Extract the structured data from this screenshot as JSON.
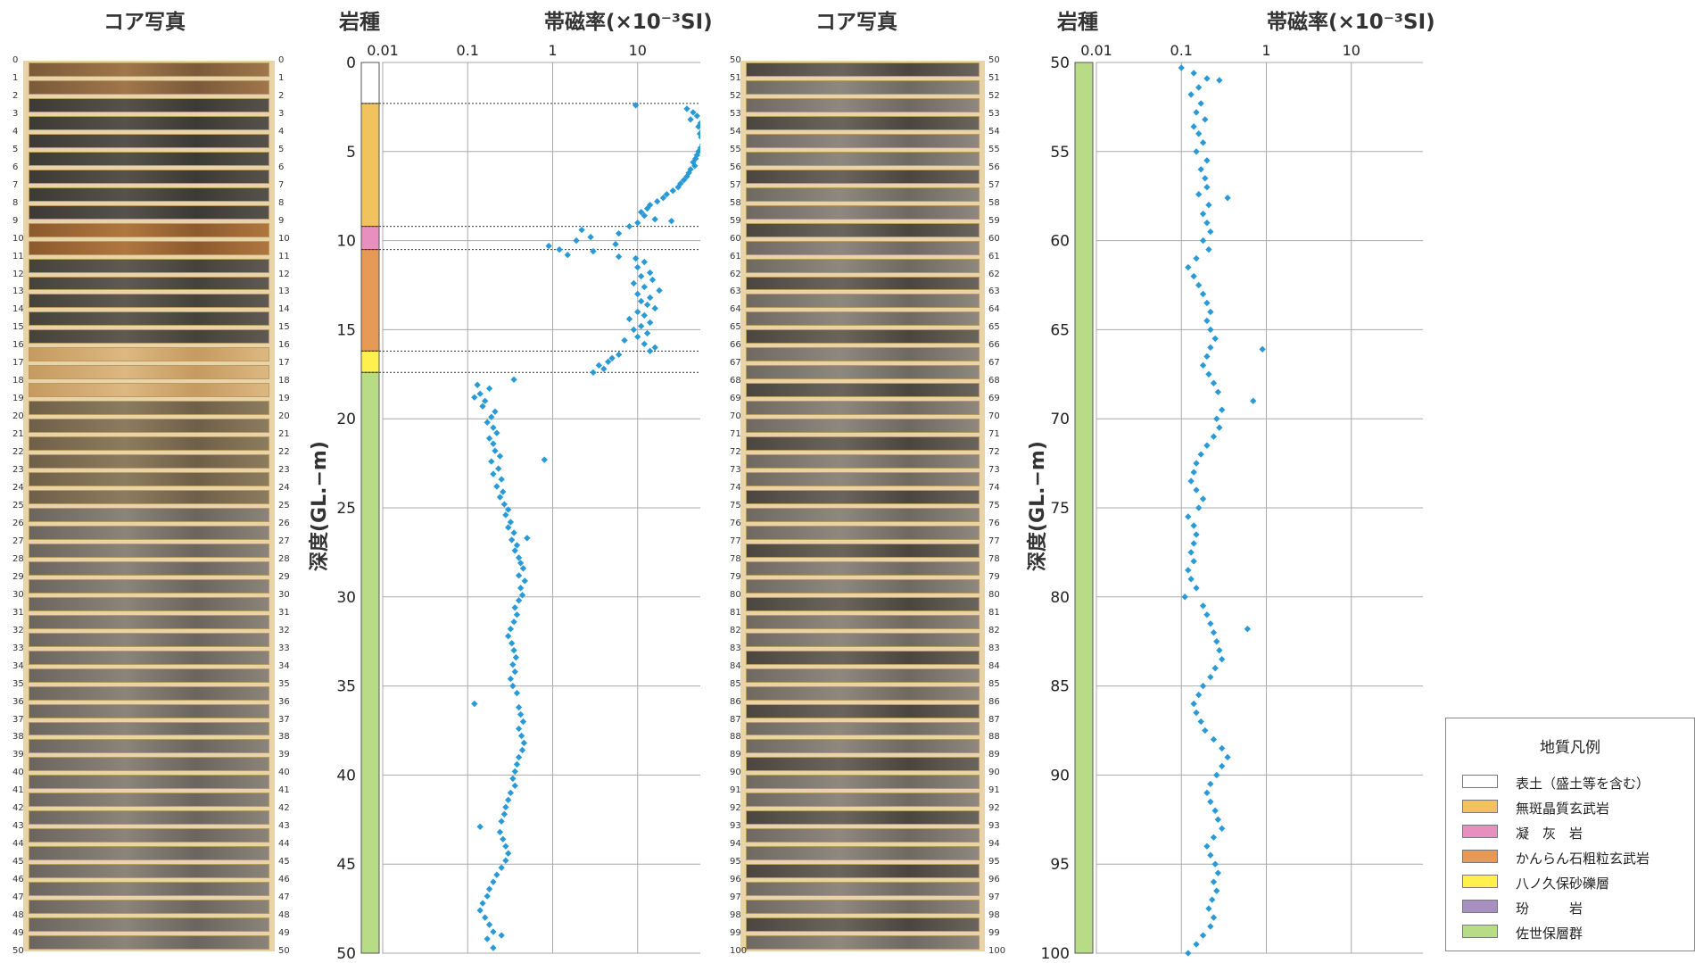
{
  "headers": {
    "core_photo_left": "コア写真",
    "core_photo_right": "コア写真",
    "rock_type_left": "岩種",
    "rock_type_right": "岩種",
    "susceptibility_left": "帯磁率(×10⁻³SI)",
    "susceptibility_right": "帯磁率(×10⁻³SI)"
  },
  "depth_axis_label": "深度(GL.−m)",
  "legend": {
    "title": "地質凡例",
    "items": [
      {
        "label": "表土（盛土等を含む）",
        "color": "#ffffff"
      },
      {
        "label": "無斑晶質玄武岩",
        "color": "#f1c35e"
      },
      {
        "label": "凝　灰　岩",
        "color": "#e98fbf"
      },
      {
        "label": "かんらん石粗粒玄武岩",
        "color": "#e69a56"
      },
      {
        "label": "八ノ久保砂礫層",
        "color": "#fff04d"
      },
      {
        "label": "玢　　　岩",
        "color": "#a78fc0"
      },
      {
        "label": "佐世保層群",
        "color": "#b8dc86"
      }
    ]
  },
  "core_marks_left": [
    "0",
    "1",
    "2",
    "3",
    "4",
    "5",
    "6",
    "7",
    "8",
    "9",
    "10",
    "11",
    "12",
    "13",
    "14",
    "15",
    "16",
    "17",
    "18",
    "19",
    "20",
    "21",
    "22",
    "23",
    "24",
    "25",
    "26",
    "27",
    "28",
    "29",
    "30",
    "31",
    "32",
    "33",
    "34",
    "35",
    "36",
    "37",
    "38",
    "39",
    "40",
    "41",
    "42",
    "43",
    "44",
    "45",
    "46",
    "47",
    "48",
    "49",
    "50"
  ],
  "core_marks_right": [
    "50",
    "51",
    "52",
    "53",
    "54",
    "55",
    "56",
    "57",
    "58",
    "59",
    "60",
    "61",
    "62",
    "63",
    "64",
    "65",
    "66",
    "67",
    "68",
    "69",
    "70",
    "71",
    "72",
    "73",
    "74",
    "75",
    "76",
    "77",
    "78",
    "79",
    "80",
    "81",
    "82",
    "83",
    "84",
    "85",
    "86",
    "87",
    "88",
    "89",
    "90",
    "91",
    "92",
    "93",
    "94",
    "95",
    "96",
    "97",
    "98",
    "99",
    "100"
  ],
  "chart_data": [
    {
      "type": "scatter",
      "xlabel": "帯磁率(×10⁻³SI)",
      "ylabel": "深度(GL.−m)",
      "x_scale": "log",
      "xlim": [
        0.01,
        100
      ],
      "xticks": [
        "0.01",
        "0.1",
        "1",
        "10",
        "100"
      ],
      "ylim": [
        0,
        50
      ],
      "yticks": [
        "0",
        "5",
        "10",
        "15",
        "20",
        "25",
        "30",
        "35",
        "40",
        "45",
        "50"
      ],
      "y_inverted": true,
      "grid": true,
      "marker_color": "#2a9ad6",
      "rock_strata": [
        {
          "from": 0,
          "to": 2.3,
          "unit": "表土（盛土等を含む）",
          "color": "#ffffff"
        },
        {
          "from": 2.3,
          "to": 9.2,
          "unit": "無斑晶質玄武岩",
          "color": "#f1c35e"
        },
        {
          "from": 9.2,
          "to": 10.5,
          "unit": "凝　灰　岩",
          "color": "#e98fbf"
        },
        {
          "from": 10.5,
          "to": 16.2,
          "unit": "かんらん石粗粒玄武岩",
          "color": "#e69a56"
        },
        {
          "from": 16.2,
          "to": 17.4,
          "unit": "八ノ久保砂礫層",
          "color": "#fff04d"
        },
        {
          "from": 17.4,
          "to": 50,
          "unit": "佐世保層群",
          "color": "#b8dc86"
        }
      ],
      "boundaries": [
        2.3,
        9.2,
        10.5,
        16.2,
        17.4
      ],
      "points": [
        [
          9.5,
          2.4
        ],
        [
          38,
          2.6
        ],
        [
          45,
          2.8
        ],
        [
          50,
          3.0
        ],
        [
          42,
          3.2
        ],
        [
          55,
          3.4
        ],
        [
          52,
          3.6
        ],
        [
          58,
          3.8
        ],
        [
          54,
          4.0
        ],
        [
          56,
          4.2
        ],
        [
          60,
          4.4
        ],
        [
          58,
          4.6
        ],
        [
          55,
          4.8
        ],
        [
          52,
          5.0
        ],
        [
          50,
          5.2
        ],
        [
          48,
          5.4
        ],
        [
          45,
          5.6
        ],
        [
          47,
          5.8
        ],
        [
          42,
          6.0
        ],
        [
          40,
          6.2
        ],
        [
          38,
          6.4
        ],
        [
          35,
          6.6
        ],
        [
          32,
          6.8
        ],
        [
          30,
          7.0
        ],
        [
          26,
          7.2
        ],
        [
          22,
          7.4
        ],
        [
          20,
          7.6
        ],
        [
          17,
          7.8
        ],
        [
          14,
          8.0
        ],
        [
          13,
          8.2
        ],
        [
          11,
          8.4
        ],
        [
          12,
          8.6
        ],
        [
          16,
          8.8
        ],
        [
          25,
          8.9
        ],
        [
          10,
          9.0
        ],
        [
          8,
          9.2
        ],
        [
          6,
          9.6
        ],
        [
          2.2,
          9.4
        ],
        [
          2.8,
          9.8
        ],
        [
          1.9,
          10.0
        ],
        [
          0.9,
          10.3
        ],
        [
          1.2,
          10.5
        ],
        [
          1.5,
          10.8
        ],
        [
          3.0,
          10.6
        ],
        [
          5.5,
          10.2
        ],
        [
          6,
          10.9
        ],
        [
          9.5,
          11.0
        ],
        [
          12,
          11.2
        ],
        [
          10,
          11.5
        ],
        [
          14,
          11.8
        ],
        [
          11,
          12.0
        ],
        [
          15,
          12.2
        ],
        [
          9,
          12.4
        ],
        [
          12,
          12.6
        ],
        [
          18,
          12.8
        ],
        [
          10,
          13.0
        ],
        [
          14,
          13.2
        ],
        [
          11,
          13.4
        ],
        [
          13,
          13.6
        ],
        [
          16,
          13.8
        ],
        [
          10,
          14.0
        ],
        [
          12,
          14.2
        ],
        [
          8,
          14.4
        ],
        [
          14,
          14.6
        ],
        [
          11,
          14.8
        ],
        [
          9,
          15.0
        ],
        [
          13,
          15.2
        ],
        [
          10,
          15.4
        ],
        [
          7,
          15.6
        ],
        [
          12,
          15.8
        ],
        [
          16,
          16.0
        ],
        [
          14,
          16.2
        ],
        [
          6,
          16.4
        ],
        [
          5,
          16.6
        ],
        [
          4.5,
          16.8
        ],
        [
          3.5,
          17.0
        ],
        [
          4,
          17.2
        ],
        [
          3,
          17.4
        ],
        [
          0.35,
          17.8
        ],
        [
          0.13,
          18.1
        ],
        [
          0.18,
          18.3
        ],
        [
          0.14,
          18.6
        ],
        [
          0.12,
          18.8
        ],
        [
          0.16,
          19.0
        ],
        [
          0.15,
          19.3
        ],
        [
          0.21,
          19.6
        ],
        [
          0.19,
          19.9
        ],
        [
          0.17,
          20.2
        ],
        [
          0.2,
          20.5
        ],
        [
          0.22,
          20.8
        ],
        [
          0.18,
          21.1
        ],
        [
          0.2,
          21.4
        ],
        [
          0.21,
          21.8
        ],
        [
          0.24,
          22.1
        ],
        [
          0.19,
          22.4
        ],
        [
          0.8,
          22.3
        ],
        [
          0.23,
          22.8
        ],
        [
          0.2,
          23.1
        ],
        [
          0.25,
          23.4
        ],
        [
          0.22,
          23.8
        ],
        [
          0.26,
          24.1
        ],
        [
          0.24,
          24.4
        ],
        [
          0.27,
          24.8
        ],
        [
          0.3,
          25.1
        ],
        [
          0.28,
          25.4
        ],
        [
          0.32,
          25.8
        ],
        [
          0.3,
          26.1
        ],
        [
          0.35,
          26.4
        ],
        [
          0.33,
          26.8
        ],
        [
          0.5,
          26.7
        ],
        [
          0.38,
          27.1
        ],
        [
          0.36,
          27.4
        ],
        [
          0.4,
          27.8
        ],
        [
          0.42,
          28.1
        ],
        [
          0.45,
          28.4
        ],
        [
          0.4,
          28.8
        ],
        [
          0.47,
          29.1
        ],
        [
          0.42,
          29.5
        ],
        [
          0.44,
          29.9
        ],
        [
          0.4,
          30.2
        ],
        [
          0.36,
          30.6
        ],
        [
          0.38,
          31.0
        ],
        [
          0.35,
          31.4
        ],
        [
          0.32,
          31.8
        ],
        [
          0.3,
          32.2
        ],
        [
          0.33,
          32.6
        ],
        [
          0.35,
          33.0
        ],
        [
          0.37,
          33.4
        ],
        [
          0.34,
          33.8
        ],
        [
          0.36,
          34.2
        ],
        [
          0.32,
          34.6
        ],
        [
          0.34,
          35.0
        ],
        [
          0.38,
          35.4
        ],
        [
          0.12,
          36.0
        ],
        [
          0.4,
          36.2
        ],
        [
          0.42,
          36.6
        ],
        [
          0.45,
          37.0
        ],
        [
          0.4,
          37.4
        ],
        [
          0.43,
          37.8
        ],
        [
          0.46,
          38.2
        ],
        [
          0.44,
          38.6
        ],
        [
          0.4,
          39.0
        ],
        [
          0.38,
          39.4
        ],
        [
          0.36,
          39.8
        ],
        [
          0.34,
          40.2
        ],
        [
          0.36,
          40.6
        ],
        [
          0.32,
          41.0
        ],
        [
          0.3,
          41.4
        ],
        [
          0.28,
          41.8
        ],
        [
          0.27,
          42.2
        ],
        [
          0.25,
          42.6
        ],
        [
          0.14,
          42.9
        ],
        [
          0.24,
          43.2
        ],
        [
          0.26,
          43.6
        ],
        [
          0.28,
          44.0
        ],
        [
          0.3,
          44.4
        ],
        [
          0.28,
          44.8
        ],
        [
          0.25,
          45.2
        ],
        [
          0.22,
          45.6
        ],
        [
          0.2,
          46.0
        ],
        [
          0.18,
          46.4
        ],
        [
          0.17,
          46.8
        ],
        [
          0.15,
          47.2
        ],
        [
          0.14,
          47.6
        ],
        [
          0.16,
          48.0
        ],
        [
          0.18,
          48.4
        ],
        [
          0.2,
          48.8
        ],
        [
          0.17,
          49.2
        ],
        [
          0.25,
          49.0
        ],
        [
          0.2,
          49.7
        ]
      ]
    },
    {
      "type": "scatter",
      "xlabel": "帯磁率(×10⁻³SI)",
      "ylabel": "深度(GL.−m)",
      "x_scale": "log",
      "xlim": [
        0.01,
        100
      ],
      "xticks": [
        "0.01",
        "0.1",
        "1",
        "10",
        "100"
      ],
      "ylim": [
        50,
        100
      ],
      "yticks": [
        "50",
        "55",
        "60",
        "65",
        "70",
        "75",
        "80",
        "85",
        "90",
        "95",
        "100"
      ],
      "y_inverted": true,
      "grid": true,
      "marker_color": "#2a9ad6",
      "rock_strata": [
        {
          "from": 50,
          "to": 100,
          "unit": "佐世保層群",
          "color": "#b8dc86"
        }
      ],
      "boundaries": [],
      "points": [
        [
          0.1,
          50.3
        ],
        [
          0.14,
          50.6
        ],
        [
          0.2,
          50.9
        ],
        [
          0.28,
          51.0
        ],
        [
          0.16,
          51.4
        ],
        [
          0.13,
          51.8
        ],
        [
          0.17,
          52.3
        ],
        [
          0.15,
          52.8
        ],
        [
          0.19,
          53.2
        ],
        [
          0.14,
          53.6
        ],
        [
          0.16,
          54.0
        ],
        [
          0.18,
          54.5
        ],
        [
          0.15,
          55.0
        ],
        [
          0.2,
          55.5
        ],
        [
          0.17,
          56.0
        ],
        [
          0.19,
          56.5
        ],
        [
          0.2,
          57.0
        ],
        [
          0.16,
          57.4
        ],
        [
          0.35,
          57.6
        ],
        [
          0.21,
          58.0
        ],
        [
          0.18,
          58.5
        ],
        [
          0.2,
          59.0
        ],
        [
          0.22,
          59.5
        ],
        [
          0.18,
          60.0
        ],
        [
          0.21,
          60.5
        ],
        [
          0.15,
          61.0
        ],
        [
          0.12,
          61.5
        ],
        [
          0.14,
          62.0
        ],
        [
          0.16,
          62.5
        ],
        [
          0.18,
          63.0
        ],
        [
          0.2,
          63.5
        ],
        [
          0.22,
          64.0
        ],
        [
          0.2,
          64.5
        ],
        [
          0.22,
          65.0
        ],
        [
          0.25,
          65.5
        ],
        [
          0.22,
          66.0
        ],
        [
          0.9,
          66.1
        ],
        [
          0.2,
          66.5
        ],
        [
          0.18,
          67.0
        ],
        [
          0.21,
          67.5
        ],
        [
          0.24,
          68.0
        ],
        [
          0.27,
          68.5
        ],
        [
          0.7,
          69.0
        ],
        [
          0.3,
          69.5
        ],
        [
          0.26,
          70.0
        ],
        [
          0.28,
          70.5
        ],
        [
          0.24,
          71.0
        ],
        [
          0.2,
          71.5
        ],
        [
          0.17,
          72.0
        ],
        [
          0.15,
          72.5
        ],
        [
          0.14,
          73.0
        ],
        [
          0.13,
          73.5
        ],
        [
          0.15,
          74.0
        ],
        [
          0.18,
          74.5
        ],
        [
          0.16,
          75.0
        ],
        [
          0.12,
          75.5
        ],
        [
          0.14,
          76.0
        ],
        [
          0.15,
          76.5
        ],
        [
          0.14,
          77.0
        ],
        [
          0.13,
          77.5
        ],
        [
          0.14,
          78.0
        ],
        [
          0.12,
          78.5
        ],
        [
          0.13,
          79.0
        ],
        [
          0.15,
          79.5
        ],
        [
          0.11,
          80.0
        ],
        [
          0.18,
          80.5
        ],
        [
          0.2,
          81.0
        ],
        [
          0.22,
          81.5
        ],
        [
          0.6,
          81.8
        ],
        [
          0.24,
          82.0
        ],
        [
          0.26,
          82.5
        ],
        [
          0.28,
          83.0
        ],
        [
          0.3,
          83.5
        ],
        [
          0.25,
          84.0
        ],
        [
          0.22,
          84.5
        ],
        [
          0.18,
          85.0
        ],
        [
          0.16,
          85.5
        ],
        [
          0.14,
          86.0
        ],
        [
          0.15,
          86.5
        ],
        [
          0.17,
          87.0
        ],
        [
          0.19,
          87.5
        ],
        [
          0.24,
          88.0
        ],
        [
          0.3,
          88.5
        ],
        [
          0.35,
          89.0
        ],
        [
          0.3,
          89.5
        ],
        [
          0.26,
          90.0
        ],
        [
          0.22,
          90.5
        ],
        [
          0.2,
          91.0
        ],
        [
          0.22,
          91.5
        ],
        [
          0.25,
          92.0
        ],
        [
          0.27,
          92.5
        ],
        [
          0.3,
          93.0
        ],
        [
          0.24,
          93.5
        ],
        [
          0.2,
          94.0
        ],
        [
          0.22,
          94.5
        ],
        [
          0.25,
          95.0
        ],
        [
          0.27,
          95.5
        ],
        [
          0.24,
          96.0
        ],
        [
          0.26,
          96.5
        ],
        [
          0.23,
          97.0
        ],
        [
          0.21,
          97.5
        ],
        [
          0.24,
          98.0
        ],
        [
          0.22,
          98.5
        ],
        [
          0.18,
          99.0
        ],
        [
          0.15,
          99.5
        ],
        [
          0.12,
          100.0
        ]
      ]
    }
  ]
}
